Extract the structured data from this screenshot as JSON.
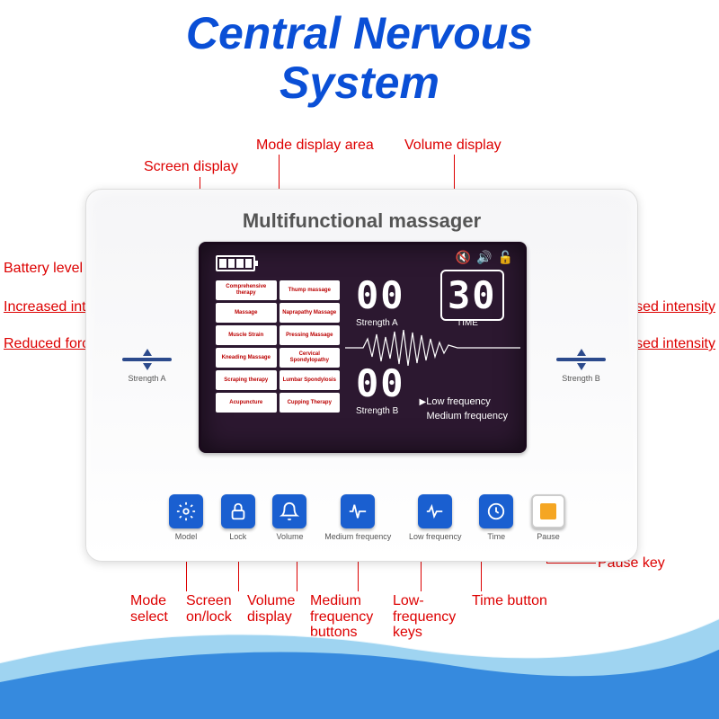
{
  "title_line1": "Central Nervous",
  "title_line2": "System",
  "device_title": "Multifunctional massager",
  "display": {
    "strength_a": "00",
    "strength_b": "00",
    "time": "30",
    "label_a": "Strength A",
    "label_b": "Strength B",
    "label_time": "TIME",
    "freq_low": "Low frequency",
    "freq_med": "Medium frequency"
  },
  "modes": [
    "Comprehensive therapy",
    "Thump massage",
    "Massage",
    "Naprapathy Massage",
    "Muscle Strain",
    "Pressing Massage",
    "Kneading Massage",
    "Cervical Spondylopathy",
    "Scraping therapy",
    "Lumbar Spondylosis",
    "Acupuncture",
    "Cupping Therapy"
  ],
  "buttons": [
    {
      "name": "model",
      "label": "Model",
      "icon": "gear"
    },
    {
      "name": "lock",
      "label": "Lock",
      "icon": "lock"
    },
    {
      "name": "volume",
      "label": "Volume",
      "icon": "bell"
    },
    {
      "name": "med-freq",
      "label": "Medium frequency",
      "icon": "pulse"
    },
    {
      "name": "low-freq",
      "label": "Low frequency",
      "icon": "pulse2"
    },
    {
      "name": "time",
      "label": "Time",
      "icon": "clock"
    },
    {
      "name": "pause",
      "label": "Pause",
      "icon": "pause"
    }
  ],
  "side_labels": {
    "strength_a": "Strength A",
    "strength_b": "Strength B"
  },
  "callouts": {
    "screen_display": "Screen display",
    "mode_display": "Mode display area",
    "volume_display_top": "Volume display",
    "battery": "Battery level display",
    "inc_intensity_l": "Increased intensity",
    "red_force": "Reduced force",
    "inc_intensity_r": "Increased intensity",
    "dec_intensity": "Decreased intensity",
    "mode_select": "Mode select",
    "screen_lock": "Screen on/lock",
    "volume_disp": "Volume display",
    "med_freq_btn": "Medium frequency buttons",
    "low_freq_btn": "Low-frequency keys",
    "time_btn": "Time button",
    "pause_key": "Pause key"
  },
  "colors": {
    "title": "#0a4fd6",
    "callout": "#d42020",
    "btn_bg": "#1a5fd0",
    "screen_bg": "#2c1830",
    "swoosh1": "#0a6bd6",
    "swoosh2": "#5fb8e8"
  }
}
